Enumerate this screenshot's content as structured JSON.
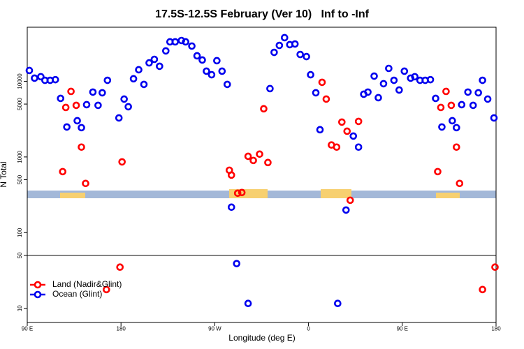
{
  "chart_data": {
    "type": "scatter",
    "title": "17.5S-12.5S February (Ver 10)   Inf to -Inf",
    "x_label": "Longitude (deg E)",
    "y_label": "N Total",
    "xlim": [
      90,
      540
    ],
    "ylim": [
      6.5,
      51800
    ],
    "log_y": true,
    "legend": "bottom-left",
    "hline": 50,
    "xticks": [
      {
        "value": 90,
        "label": "90 E"
      },
      180,
      {
        "value": 270,
        "label": "90 W"
      },
      {
        "value": 360,
        "label": "0"
      },
      {
        "value": 450,
        "label": "90 E"
      },
      {
        "value": 540,
        "label": "180"
      }
    ],
    "yticks": [
      10,
      50,
      100,
      500,
      1000,
      5000,
      10000
    ],
    "series": [
      {
        "name": "Land (Nadir&Glint)",
        "color": "#ff0000",
        "x": [
          124,
          127,
          132,
          137,
          142,
          146,
          166,
          179,
          181,
          284,
          286,
          292,
          296,
          302,
          307,
          313,
          317,
          321,
          373,
          377,
          382,
          387,
          392,
          397,
          400,
          408,
          484,
          487,
          492,
          497,
          502,
          505,
          527,
          539
        ],
        "values": [
          640,
          4510,
          7350,
          4810,
          1350,
          447,
          17.7,
          35,
          861,
          668,
          576,
          332,
          339,
          1020,
          899,
          1090,
          4330,
          844,
          9690,
          5820,
          1440,
          1350,
          2890,
          2190,
          268,
          2950,
          640,
          4510,
          7350,
          4810,
          1350,
          447,
          17.7,
          35
        ]
      },
      {
        "name": "Ocean (Glint)",
        "color": "#0000ee",
        "x": [
          92,
          97,
          103,
          107,
          112,
          117,
          122,
          128,
          138,
          142,
          147,
          153,
          158,
          162,
          167,
          178,
          183,
          187,
          192,
          197,
          202,
          207,
          212,
          217,
          223,
          227,
          232,
          238,
          242,
          248,
          253,
          258,
          262,
          267,
          272,
          277,
          282,
          286,
          291,
          302,
          323,
          327,
          332,
          337,
          342,
          347,
          352,
          358,
          362,
          367,
          371,
          388,
          396,
          403,
          408,
          413,
          417,
          423,
          427,
          432,
          437,
          442,
          447,
          452,
          458,
          462,
          467,
          472,
          477,
          482,
          488,
          498,
          502,
          507,
          513,
          518,
          523,
          527,
          532,
          538
        ],
        "values": [
          13900,
          11000,
          11500,
          10300,
          10300,
          10500,
          5940,
          2490,
          3010,
          2440,
          4910,
          7200,
          4810,
          7050,
          10300,
          3280,
          5820,
          4610,
          10800,
          14200,
          9100,
          17500,
          19500,
          15800,
          25200,
          33200,
          33200,
          34600,
          33200,
          29200,
          21700,
          19100,
          13600,
          12200,
          18700,
          13600,
          9100,
          217,
          39,
          11.6,
          8000,
          24100,
          29800,
          37700,
          30500,
          31100,
          22600,
          21200,
          12200,
          7050,
          2290,
          11.6,
          199,
          1890,
          1350,
          6750,
          7200,
          11700,
          6070,
          9290,
          14800,
          10300,
          7670,
          13600,
          11000,
          11500,
          10300,
          10300,
          10500,
          5940,
          2490,
          3010,
          2440,
          4910,
          7200,
          4810,
          7050,
          10300,
          5820,
          3280
        ]
      }
    ]
  }
}
